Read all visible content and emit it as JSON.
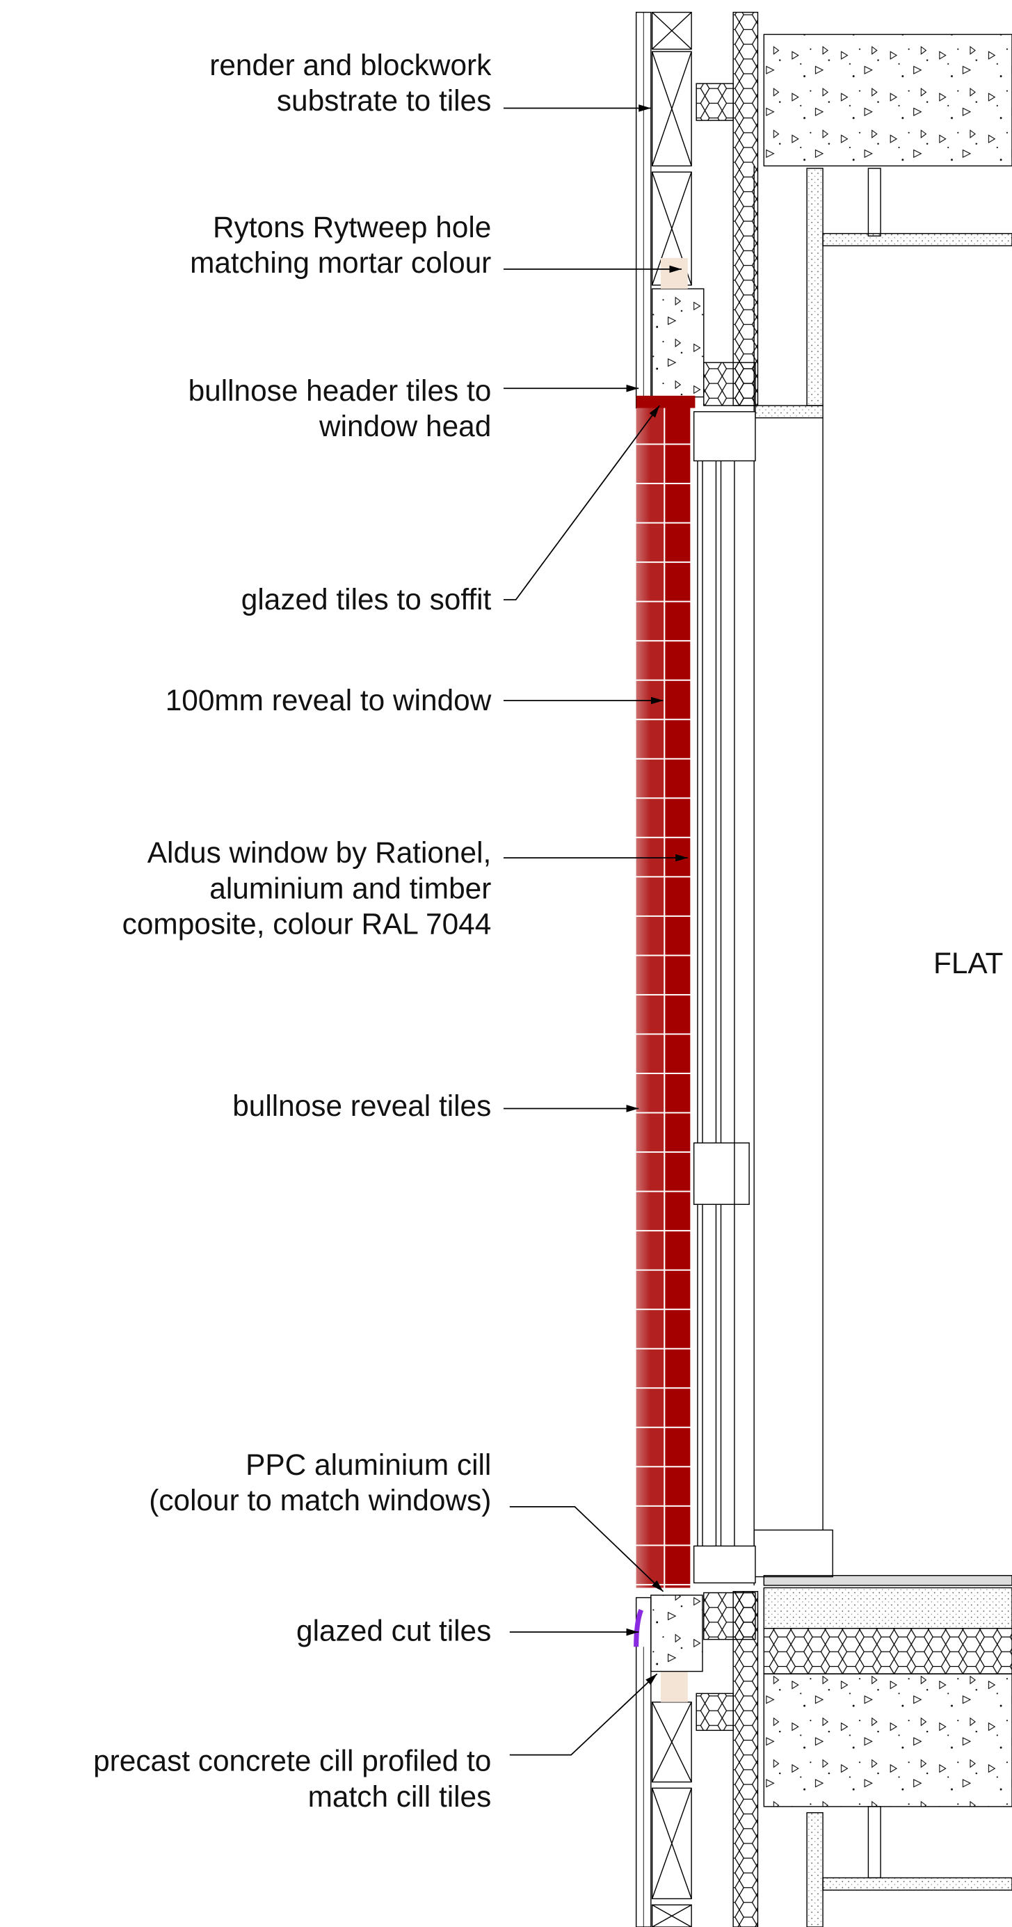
{
  "labels": [
    {
      "lines": [
        "render and blockwork",
        "substrate to tiles"
      ]
    },
    {
      "lines": [
        "Rytons Rytweep hole",
        "matching mortar colour"
      ]
    },
    {
      "lines": [
        "bullnose header tiles to",
        "window head"
      ]
    },
    {
      "lines": [
        "glazed tiles to soffit"
      ]
    },
    {
      "lines": [
        "100mm reveal to window"
      ]
    },
    {
      "lines": [
        "Aldus window by Rationel,",
        "aluminium and timber",
        "composite, colour RAL 7044"
      ]
    },
    {
      "lines": [
        "bullnose reveal tiles"
      ]
    },
    {
      "lines": [
        "PPC aluminium cill",
        "(colour to match windows)"
      ]
    },
    {
      "lines": [
        "glazed cut tiles"
      ]
    },
    {
      "lines": [
        "precast concrete cill profiled to",
        "match cill tiles"
      ]
    }
  ],
  "room_label": "FLAT"
}
